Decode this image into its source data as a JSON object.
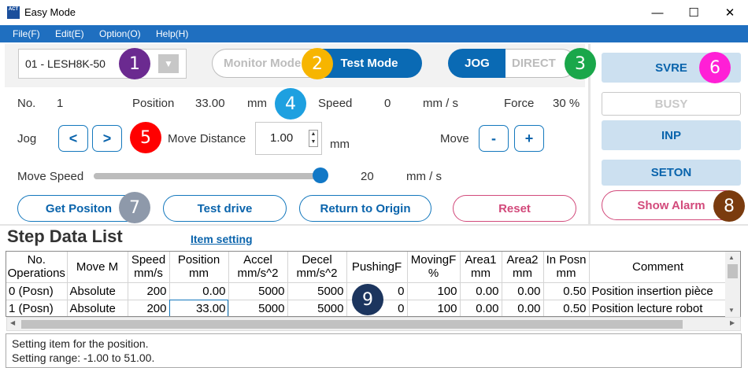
{
  "window": {
    "title": "Easy Mode",
    "icon_text": "ACT",
    "minimize": "—",
    "maximize": "☐",
    "close": "✕"
  },
  "menu": [
    "File(F)",
    "Edit(E)",
    "Option(O)",
    "Help(H)"
  ],
  "controller": {
    "value": "01 - LESH8K-50",
    "dropdown_icon": "chevron-down-icon"
  },
  "mode_toggle": {
    "monitor_label": "Monitor Mode",
    "test_label": "Test Mode",
    "active": "Test Mode"
  },
  "jog_toggle": {
    "jog_label": "JOG",
    "direct_label": "DIRECT",
    "active": "JOG"
  },
  "status": {
    "no_label": "No.",
    "no_value": "1",
    "position_label": "Position",
    "position_value": "33.00",
    "position_unit": "mm",
    "speed_label": "Speed",
    "speed_value": "0",
    "speed_unit": "mm / s",
    "force_label": "Force",
    "force_value": "30 %"
  },
  "jog": {
    "label": "Jog",
    "left_btn": "<",
    "right_btn": ">",
    "move_distance_label": "Move Distance",
    "move_distance_value": "1.00",
    "move_distance_unit": "mm",
    "move_label": "Move",
    "minus_btn": "-",
    "plus_btn": "+"
  },
  "move_speed": {
    "label": "Move Speed",
    "value": "20",
    "unit": "mm / s",
    "level_fraction": 0.97
  },
  "actions": {
    "get_position": "Get Positon",
    "test_drive": "Test drive",
    "return_origin": "Return to Origin",
    "reset": "Reset"
  },
  "signals": {
    "svre": "SVRE",
    "busy": "BUSY",
    "inp": "INP",
    "seton": "SETON",
    "show_alarm": "Show Alarm"
  },
  "badges": [
    "1",
    "2",
    "3",
    "4",
    "5",
    "6",
    "7",
    "8",
    "9"
  ],
  "colors": {
    "accent": "#0a6ab4",
    "menu_bar": "#1f6fc0",
    "badge_1": "#6b2a90",
    "badge_2": "#f7b500",
    "badge_3": "#1aa74a",
    "badge_4": "#1ea0e0",
    "badge_5": "#ff0000",
    "badge_6": "#ff1fd6",
    "badge_7": "#8e99aa",
    "badge_8": "#7a3b0e",
    "badge_9": "#1c355e"
  },
  "step_data": {
    "title": "Step Data List",
    "item_setting": "Item setting",
    "headers": [
      [
        "No.",
        "Operations"
      ],
      [
        "Move M",
        ""
      ],
      [
        "Speed",
        "mm/s"
      ],
      [
        "Position",
        "mm"
      ],
      [
        "Accel",
        "mm/s^2"
      ],
      [
        "Decel",
        "mm/s^2"
      ],
      [
        "PushingF",
        ""
      ],
      [
        "MovingF",
        "%"
      ],
      [
        "Area1",
        "mm"
      ],
      [
        "Area2",
        "mm"
      ],
      [
        "In Posn",
        "mm"
      ],
      [
        "Comment",
        ""
      ]
    ],
    "rows": [
      [
        "0 (Posn)",
        "Absolute",
        "200",
        "0.00",
        "5000",
        "5000",
        "0",
        "100",
        "0.00",
        "0.00",
        "0.50",
        "Position insertion pièce"
      ],
      [
        "1 (Posn)",
        "Absolute",
        "200",
        "33.00",
        "5000",
        "5000",
        "0",
        "100",
        "0.00",
        "0.00",
        "0.50",
        "Position lecture robot"
      ]
    ]
  },
  "message": {
    "line1": "Setting item for the position.",
    "line2": "Setting range: -1.00 to 51.00."
  }
}
